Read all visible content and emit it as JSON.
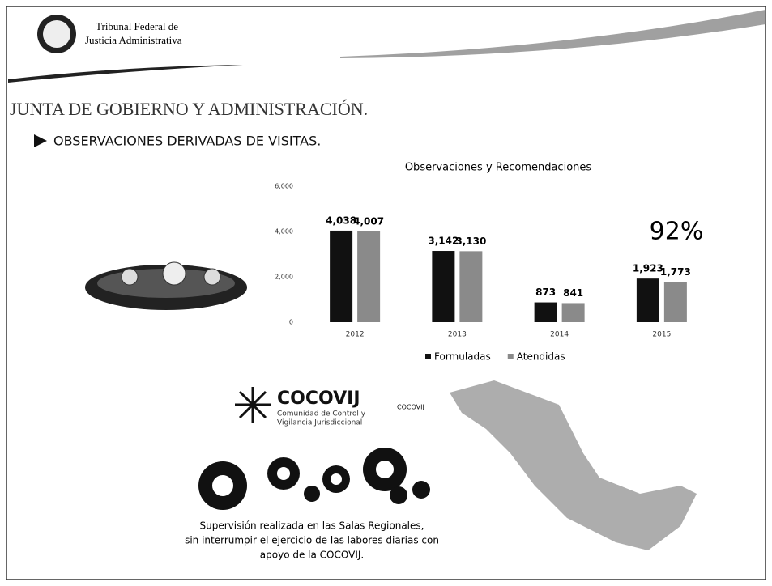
{
  "header": {
    "line1": "Tribunal Federal de",
    "line2": "Justicia Administrativa"
  },
  "title": "JUNTA DE GOBIERNO Y ADMINISTRACIÓN.",
  "subtitle": "OBSERVACIONES DERIVADAS DE VISITAS.",
  "chart_data": {
    "type": "bar",
    "title": "Observaciones y Recomendaciones",
    "categories": [
      "2012",
      "2013",
      "2014",
      "2015"
    ],
    "series": [
      {
        "name": "Formuladas",
        "color": "#111111",
        "values": [
          4038,
          3142,
          873,
          1923
        ],
        "value_labels": [
          "4,038",
          "3,142",
          "873",
          "1,923"
        ]
      },
      {
        "name": "Atendidas",
        "color": "#8a8a8a",
        "values": [
          4007,
          3130,
          841,
          1773
        ],
        "value_labels": [
          "4,007",
          "3,130",
          "841",
          "1,773"
        ]
      }
    ],
    "ylim": [
      0,
      6000
    ],
    "yticks": [
      0,
      {
        "value": 2000,
        "label": "2,000"
      },
      {
        "value": 4000,
        "label": "4,000"
      },
      {
        "value": 6000,
        "label": "6,000"
      }
    ],
    "annotation": "92%",
    "legend": "bottom"
  },
  "logo": {
    "name": "COCOVIJ",
    "line1": "Comunidad de Control y",
    "line2": "Vigilancia Jurisdiccional",
    "tag": "COCOVIJ"
  },
  "caption": {
    "line1": "Supervisión realizada en las Salas Regionales,",
    "line2": "sin interrumpir el ejercicio de las labores diarias con",
    "line3": "apoyo de la COCOVIJ."
  }
}
